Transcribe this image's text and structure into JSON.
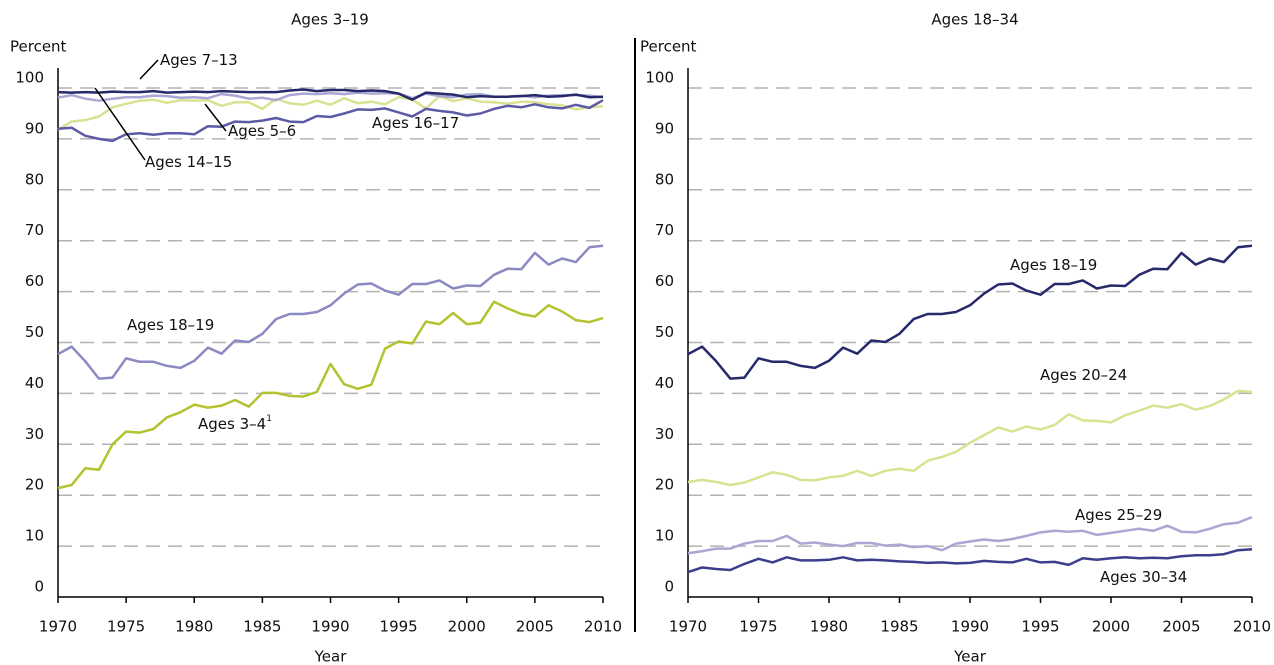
{
  "chart_data": [
    {
      "type": "line",
      "title": "Ages 3–19",
      "ylabel": "Percent",
      "xlabel": "Year",
      "x": [
        1970,
        1971,
        1972,
        1973,
        1974,
        1975,
        1976,
        1977,
        1978,
        1979,
        1980,
        1981,
        1982,
        1983,
        1984,
        1985,
        1986,
        1987,
        1988,
        1989,
        1990,
        1991,
        1992,
        1993,
        1994,
        1995,
        1996,
        1997,
        1998,
        1999,
        2000,
        2001,
        2002,
        2003,
        2004,
        2005,
        2006,
        2007,
        2008,
        2009,
        2010
      ],
      "xlim": [
        1970,
        2010
      ],
      "xticks": [
        1970,
        1975,
        1980,
        1985,
        1990,
        1995,
        2000,
        2005,
        2010
      ],
      "ylim": [
        0,
        100
      ],
      "yticks": [
        0,
        10,
        20,
        30,
        40,
        50,
        60,
        70,
        80,
        90,
        100
      ],
      "grid": true,
      "series": [
        {
          "name": "Ages 3–4",
          "footnote": "1",
          "color": "#b3c22f",
          "values": [
            21.4,
            22.0,
            25.3,
            25.0,
            30.0,
            32.5,
            32.3,
            33.0,
            35.3,
            36.3,
            37.8,
            37.2,
            37.6,
            38.7,
            37.4,
            40.1,
            40.1,
            39.5,
            39.4,
            40.3,
            45.8,
            41.8,
            40.9,
            41.7,
            48.8,
            50.2,
            49.8,
            54.1,
            53.6,
            55.8,
            53.6,
            53.9,
            58.0,
            56.7,
            55.6,
            55.1,
            57.3,
            56.1,
            54.4,
            54.0,
            54.8
          ]
        },
        {
          "name": "Ages 18–19",
          "color": "#8c8ac2",
          "values": [
            47.7,
            49.2,
            46.3,
            42.9,
            43.1,
            46.9,
            46.2,
            46.2,
            45.4,
            45.0,
            46.4,
            49.0,
            47.8,
            50.4,
            50.1,
            51.7,
            54.6,
            55.6,
            55.6,
            56.0,
            57.3,
            59.6,
            61.4,
            61.6,
            60.2,
            59.4,
            61.5,
            61.5,
            62.2,
            60.6,
            61.2,
            61.1,
            63.3,
            64.5,
            64.4,
            67.6,
            65.3,
            66.5,
            65.8,
            68.7,
            69.0
          ]
        },
        {
          "name": "Ages 5–6",
          "color": "#d9e291",
          "values": [
            91.8,
            93.4,
            93.7,
            94.4,
            96.2,
            96.9,
            97.5,
            97.7,
            97.1,
            97.6,
            97.5,
            97.6,
            96.5,
            97.2,
            97.2,
            95.9,
            97.9,
            97.0,
            96.7,
            97.5,
            96.7,
            98.0,
            97.0,
            97.3,
            96.8,
            98.2,
            97.7,
            96.0,
            98.4,
            97.4,
            98.0,
            97.3,
            97.2,
            96.9,
            97.3,
            97.2,
            96.8,
            96.6,
            95.8,
            96.2,
            96.4
          ]
        },
        {
          "name": "Ages 16–17",
          "color": "#5d5aa6",
          "values": [
            92.0,
            92.2,
            90.6,
            90.0,
            89.6,
            90.9,
            91.1,
            90.8,
            91.1,
            91.1,
            90.9,
            92.5,
            92.4,
            93.4,
            93.3,
            93.6,
            94.1,
            93.4,
            93.3,
            94.5,
            94.3,
            95.0,
            95.8,
            95.7,
            96.0,
            95.2,
            94.4,
            95.9,
            95.5,
            95.2,
            94.6,
            95.0,
            95.9,
            96.5,
            96.2,
            96.8,
            96.2,
            96.0,
            96.7,
            96.1,
            97.6
          ]
        },
        {
          "name": "Ages 14–15",
          "color": "#a9a7d3",
          "values": [
            98.1,
            98.6,
            97.9,
            97.5,
            97.9,
            98.2,
            98.2,
            98.5,
            98.4,
            98.1,
            98.2,
            98.0,
            98.8,
            98.5,
            97.9,
            98.1,
            97.6,
            98.6,
            98.9,
            98.8,
            99.0,
            98.8,
            99.1,
            98.9,
            99.0,
            98.9,
            98.0,
            98.9,
            98.4,
            98.2,
            98.7,
            98.8,
            98.3,
            98.3,
            98.5,
            98.2,
            98.5,
            98.6,
            98.6,
            98.5,
            98.2
          ]
        },
        {
          "name": "Ages 7–13",
          "color": "#262a6b",
          "values": [
            99.2,
            99.1,
            99.2,
            99.1,
            99.3,
            99.2,
            99.2,
            99.4,
            99.1,
            99.2,
            99.3,
            99.2,
            99.4,
            99.3,
            99.2,
            99.2,
            99.2,
            99.5,
            99.7,
            99.4,
            99.6,
            99.6,
            99.4,
            99.5,
            99.4,
            98.9,
            97.7,
            99.1,
            98.9,
            98.7,
            98.2,
            98.4,
            98.3,
            98.3,
            98.4,
            98.6,
            98.3,
            98.4,
            98.7,
            98.2,
            98.3
          ]
        }
      ]
    },
    {
      "type": "line",
      "title": "Ages 18–34",
      "ylabel": "Percent",
      "xlabel": "Year",
      "x": [
        1970,
        1971,
        1972,
        1973,
        1974,
        1975,
        1976,
        1977,
        1978,
        1979,
        1980,
        1981,
        1982,
        1983,
        1984,
        1985,
        1986,
        1987,
        1988,
        1989,
        1990,
        1991,
        1992,
        1993,
        1994,
        1995,
        1996,
        1997,
        1998,
        1999,
        2000,
        2001,
        2002,
        2003,
        2004,
        2005,
        2006,
        2007,
        2008,
        2009,
        2010
      ],
      "xlim": [
        1970,
        2010
      ],
      "xticks": [
        1970,
        1975,
        1980,
        1985,
        1990,
        1995,
        2000,
        2005,
        2010
      ],
      "ylim": [
        0,
        100
      ],
      "yticks": [
        0,
        10,
        20,
        30,
        40,
        50,
        60,
        70,
        80,
        90,
        100
      ],
      "grid": true,
      "series": [
        {
          "name": "Ages 18–19",
          "color": "#262a6b",
          "values": [
            47.7,
            49.2,
            46.3,
            42.9,
            43.1,
            46.9,
            46.2,
            46.2,
            45.4,
            45.0,
            46.4,
            49.0,
            47.8,
            50.4,
            50.1,
            51.7,
            54.6,
            55.6,
            55.6,
            56.0,
            57.3,
            59.6,
            61.4,
            61.6,
            60.2,
            59.4,
            61.5,
            61.5,
            62.2,
            60.6,
            61.2,
            61.1,
            63.3,
            64.5,
            64.4,
            67.6,
            65.3,
            66.5,
            65.8,
            68.7,
            69.0
          ]
        },
        {
          "name": "Ages 20–24",
          "color": "#d9e291",
          "values": [
            22.6,
            23.0,
            22.6,
            22.0,
            22.5,
            23.5,
            24.5,
            24.0,
            23.0,
            22.9,
            23.5,
            23.8,
            24.8,
            23.8,
            24.8,
            25.2,
            24.8,
            26.8,
            27.5,
            28.5,
            30.3,
            31.8,
            33.3,
            32.5,
            33.5,
            32.9,
            33.8,
            35.9,
            34.7,
            34.6,
            34.3,
            35.7,
            36.6,
            37.6,
            37.2,
            37.9,
            36.8,
            37.5,
            38.8,
            40.5,
            40.3
          ]
        },
        {
          "name": "Ages 25–29",
          "color": "#a9a7d3",
          "values": [
            8.6,
            9.0,
            9.5,
            9.5,
            10.5,
            11.0,
            11.0,
            12.0,
            10.5,
            10.7,
            10.3,
            10.0,
            10.6,
            10.6,
            10.1,
            10.3,
            9.8,
            10.0,
            9.2,
            10.5,
            10.9,
            11.3,
            11.0,
            11.4,
            12.0,
            12.7,
            13.0,
            12.8,
            13.0,
            12.2,
            12.6,
            13.0,
            13.4,
            13.0,
            14.0,
            12.8,
            12.7,
            13.4,
            14.3,
            14.6,
            15.7
          ]
        },
        {
          "name": "Ages 30–34",
          "color": "#3d3f8c",
          "values": [
            4.9,
            5.8,
            5.5,
            5.3,
            6.5,
            7.5,
            6.8,
            7.8,
            7.2,
            7.2,
            7.3,
            7.8,
            7.2,
            7.3,
            7.2,
            7.0,
            6.9,
            6.7,
            6.8,
            6.6,
            6.7,
            7.1,
            6.9,
            6.8,
            7.5,
            6.8,
            6.9,
            6.3,
            7.6,
            7.3,
            7.6,
            7.8,
            7.6,
            7.7,
            7.6,
            8.0,
            8.2,
            8.2,
            8.4,
            9.2,
            9.4
          ]
        }
      ]
    }
  ]
}
